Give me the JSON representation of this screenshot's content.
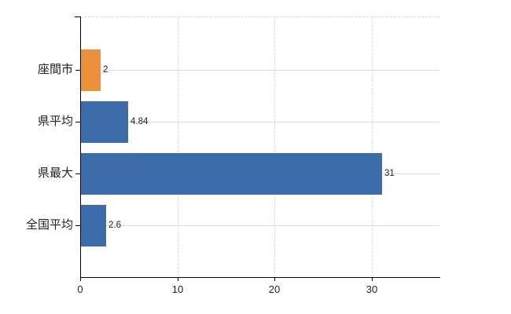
{
  "chart_data": {
    "type": "bar",
    "orientation": "horizontal",
    "title": "",
    "xlabel": "",
    "ylabel": "",
    "categories": [
      "座間市",
      "県平均",
      "県最大",
      "全国平均"
    ],
    "values": [
      2,
      4.84,
      31,
      2.6
    ],
    "value_labels": [
      "2",
      "4.84",
      "31",
      "2.6"
    ],
    "bar_colors": [
      "#EB923A",
      "#3D6CAA",
      "#3D6CAA",
      "#3D6CAA"
    ],
    "x_ticks": [
      0,
      10,
      20,
      30
    ],
    "xlim": [
      0,
      37
    ],
    "grid": true,
    "legend_position": "none"
  },
  "colors": {
    "background": "#FFFFFF",
    "bar_orange": "#EB923A",
    "bar_blue": "#3D6CAA",
    "axis": "#000000",
    "grid_vertical_dashed": "#D9D9D9",
    "grid_horizontal": "#D9DED9",
    "text": "#222222"
  }
}
